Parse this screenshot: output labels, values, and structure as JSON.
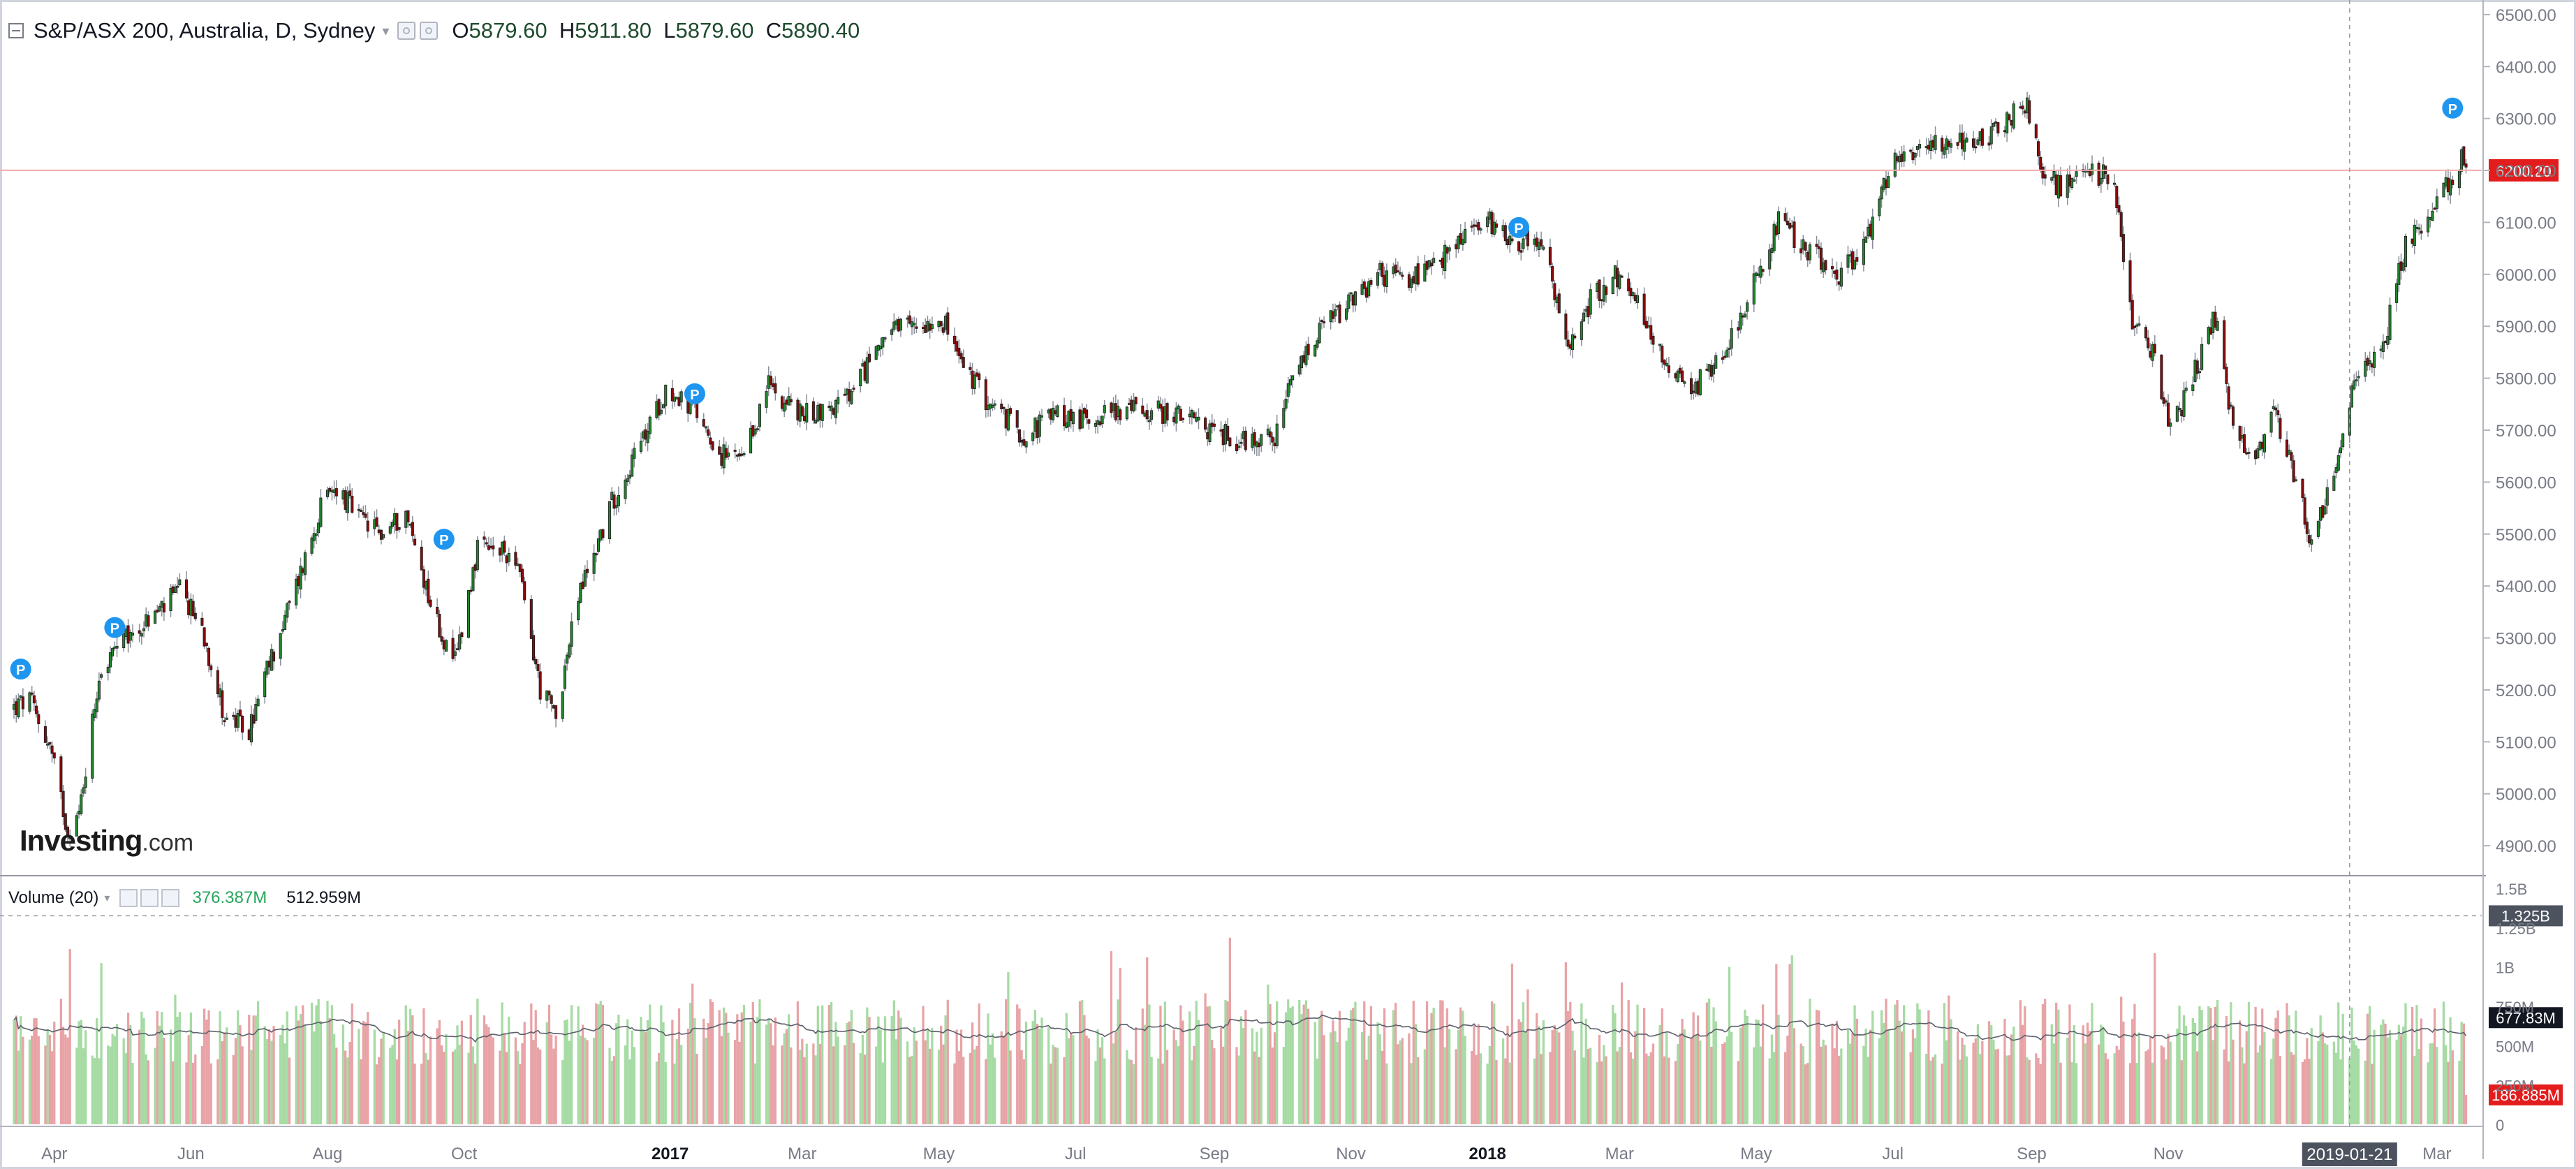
{
  "legend": {
    "symbol": "S&P/ASX 200, Australia, D, Sydney",
    "open_label": "O",
    "open": "5879.60",
    "high_label": "H",
    "high": "5911.80",
    "low_label": "L",
    "low": "5879.60",
    "close_label": "C",
    "close": "5890.40"
  },
  "volume_legend": {
    "name": "Volume (20)",
    "volume": "376.387M",
    "ma": "512.959M"
  },
  "logo": {
    "brand": "Investing",
    "domain": ".com"
  },
  "icons": [
    "collapse-icon",
    "settings-icon",
    "close-icon",
    "dropdown-caret-icon",
    "news-pin-icon"
  ],
  "colors": {
    "up": "#22862f",
    "down": "#8b0b0b",
    "volume_up": "#a6dba4",
    "volume_down": "#e8a3a6",
    "last_price": "#e31d1d",
    "volume_ma": "#5d606b",
    "marker": "#1e96f0",
    "price_line": "#f2a9a9"
  },
  "chart_data": [
    {
      "type": "candlestick",
      "title": "S&P/ASX 200, Australia, D, Sydney",
      "period": "daily",
      "x_tick_labels": [
        "Apr",
        "Jun",
        "Aug",
        "Oct",
        "2017",
        "Mar",
        "May",
        "Jul",
        "Sep",
        "Nov",
        "2018",
        "Mar",
        "May",
        "Jul",
        "Sep",
        "Nov",
        "Mar"
      ],
      "y_tick_labels": [
        "4900.00",
        "5000.00",
        "5100.00",
        "5200.00",
        "5300.00",
        "5400.00",
        "5500.00",
        "5600.00",
        "5700.00",
        "5800.00",
        "5900.00",
        "6000.00",
        "6100.00",
        "6200.00",
        "6300.00",
        "6400.00",
        "6500.00"
      ],
      "ylim": [
        4845,
        6520
      ],
      "last_price": "6200.20",
      "approx_close_path": [
        {
          "date": "2016-03-14",
          "close": 5165
        },
        {
          "date": "2016-03-21",
          "close": 5180
        },
        {
          "date": "2016-03-30",
          "close": 5090
        },
        {
          "date": "2016-04-07",
          "close": 4930
        },
        {
          "date": "2016-04-12",
          "close": 4960
        },
        {
          "date": "2016-04-21",
          "close": 5230
        },
        {
          "date": "2016-04-29",
          "close": 5280
        },
        {
          "date": "2016-05-12",
          "close": 5330
        },
        {
          "date": "2016-05-27",
          "close": 5390
        },
        {
          "date": "2016-06-06",
          "close": 5320
        },
        {
          "date": "2016-06-16",
          "close": 5150
        },
        {
          "date": "2016-06-27",
          "close": 5120
        },
        {
          "date": "2016-07-06",
          "close": 5250
        },
        {
          "date": "2016-07-18",
          "close": 5400
        },
        {
          "date": "2016-07-29",
          "close": 5550
        },
        {
          "date": "2016-08-05",
          "close": 5590
        },
        {
          "date": "2016-08-15",
          "close": 5530
        },
        {
          "date": "2016-08-25",
          "close": 5500
        },
        {
          "date": "2016-09-05",
          "close": 5540
        },
        {
          "date": "2016-09-16",
          "close": 5370
        },
        {
          "date": "2016-09-26",
          "close": 5240
        },
        {
          "date": "2016-10-07",
          "close": 5470
        },
        {
          "date": "2016-10-24",
          "close": 5460
        },
        {
          "date": "2016-11-04",
          "close": 5200
        },
        {
          "date": "2016-11-11",
          "close": 5150
        },
        {
          "date": "2016-11-21",
          "close": 5380
        },
        {
          "date": "2016-12-06",
          "close": 5560
        },
        {
          "date": "2016-12-22",
          "close": 5700
        },
        {
          "date": "2016-12-30",
          "close": 5780
        },
        {
          "date": "2017-01-12",
          "close": 5740
        },
        {
          "date": "2017-01-24",
          "close": 5650
        },
        {
          "date": "2017-02-03",
          "close": 5640
        },
        {
          "date": "2017-02-14",
          "close": 5790
        },
        {
          "date": "2017-02-28",
          "close": 5730
        },
        {
          "date": "2017-03-13",
          "close": 5740
        },
        {
          "date": "2017-03-24",
          "close": 5770
        },
        {
          "date": "2017-04-05",
          "close": 5880
        },
        {
          "date": "2017-04-20",
          "close": 5900
        },
        {
          "date": "2017-05-02",
          "close": 5920
        },
        {
          "date": "2017-05-12",
          "close": 5820
        },
        {
          "date": "2017-05-24",
          "close": 5750
        },
        {
          "date": "2017-06-08",
          "close": 5690
        },
        {
          "date": "2017-06-21",
          "close": 5730
        },
        {
          "date": "2017-07-05",
          "close": 5720
        },
        {
          "date": "2017-07-18",
          "close": 5740
        },
        {
          "date": "2017-08-01",
          "close": 5740
        },
        {
          "date": "2017-08-15",
          "close": 5730
        },
        {
          "date": "2017-08-30",
          "close": 5700
        },
        {
          "date": "2017-09-13",
          "close": 5680
        },
        {
          "date": "2017-09-29",
          "close": 5690
        },
        {
          "date": "2017-10-06",
          "close": 5800
        },
        {
          "date": "2017-10-20",
          "close": 5900
        },
        {
          "date": "2017-11-03",
          "close": 5950
        },
        {
          "date": "2017-11-14",
          "close": 6000
        },
        {
          "date": "2017-11-27",
          "close": 5990
        },
        {
          "date": "2017-12-08",
          "close": 6010
        },
        {
          "date": "2017-12-22",
          "close": 6080
        },
        {
          "date": "2018-01-03",
          "close": 6100
        },
        {
          "date": "2018-01-15",
          "close": 6060
        },
        {
          "date": "2018-01-25",
          "close": 6070
        },
        {
          "date": "2018-02-06",
          "close": 5850
        },
        {
          "date": "2018-02-16",
          "close": 5950
        },
        {
          "date": "2018-02-27",
          "close": 6000
        },
        {
          "date": "2018-03-09",
          "close": 5940
        },
        {
          "date": "2018-03-22",
          "close": 5830
        },
        {
          "date": "2018-04-03",
          "close": 5780
        },
        {
          "date": "2018-04-16",
          "close": 5850
        },
        {
          "date": "2018-04-30",
          "close": 5980
        },
        {
          "date": "2018-05-11",
          "close": 6100
        },
        {
          "date": "2018-05-25",
          "close": 6040
        },
        {
          "date": "2018-06-07",
          "close": 6000
        },
        {
          "date": "2018-06-18",
          "close": 6050
        },
        {
          "date": "2018-06-29",
          "close": 6200
        },
        {
          "date": "2018-07-12",
          "close": 6250
        },
        {
          "date": "2018-07-26",
          "close": 6260
        },
        {
          "date": "2018-08-08",
          "close": 6250
        },
        {
          "date": "2018-08-21",
          "close": 6300
        },
        {
          "date": "2018-08-30",
          "close": 6330
        },
        {
          "date": "2018-09-07",
          "close": 6180
        },
        {
          "date": "2018-09-17",
          "close": 6170
        },
        {
          "date": "2018-09-28",
          "close": 6200
        },
        {
          "date": "2018-10-08",
          "close": 6180
        },
        {
          "date": "2018-10-16",
          "close": 5900
        },
        {
          "date": "2018-10-26",
          "close": 5840
        },
        {
          "date": "2018-11-02",
          "close": 5700
        },
        {
          "date": "2018-11-12",
          "close": 5800
        },
        {
          "date": "2018-11-22",
          "close": 5920
        },
        {
          "date": "2018-11-30",
          "close": 5700
        },
        {
          "date": "2018-12-10",
          "close": 5650
        },
        {
          "date": "2018-12-18",
          "close": 5750
        },
        {
          "date": "2018-12-28",
          "close": 5600
        },
        {
          "date": "2019-01-04",
          "close": 5480
        },
        {
          "date": "2019-01-14",
          "close": 5620
        },
        {
          "date": "2019-01-24",
          "close": 5800
        },
        {
          "date": "2019-02-06",
          "close": 5880
        },
        {
          "date": "2019-02-15",
          "close": 6060
        },
        {
          "date": "2019-02-26",
          "close": 6100
        },
        {
          "date": "2019-03-06",
          "close": 6180
        },
        {
          "date": "2019-03-12",
          "close": 6220
        },
        {
          "date": "2019-03-15",
          "close": 6200
        }
      ]
    },
    {
      "type": "bar",
      "title": "Volume (20)",
      "y_tick_labels": [
        "0",
        "250M",
        "500M",
        "750M",
        "1B",
        "1.25B",
        "1.5B"
      ],
      "ylim": [
        0,
        1500000000
      ],
      "marker_value": "1.325B",
      "ma_value": "677.83M",
      "last_volume": "186.885M"
    }
  ],
  "crosshair": {
    "x_label": "2019-01-21"
  },
  "news_markers": [
    {
      "date": "2016-03-17",
      "price": 5240,
      "label": "P"
    },
    {
      "date": "2016-04-28",
      "price": 5320,
      "label": "P"
    },
    {
      "date": "2016-09-22",
      "price": 5490,
      "label": "P"
    },
    {
      "date": "2017-01-12",
      "price": 5770,
      "label": "P"
    },
    {
      "date": "2018-01-15",
      "price": 6090,
      "label": "P"
    },
    {
      "date": "2019-03-08",
      "price": 6320,
      "label": "P"
    }
  ]
}
